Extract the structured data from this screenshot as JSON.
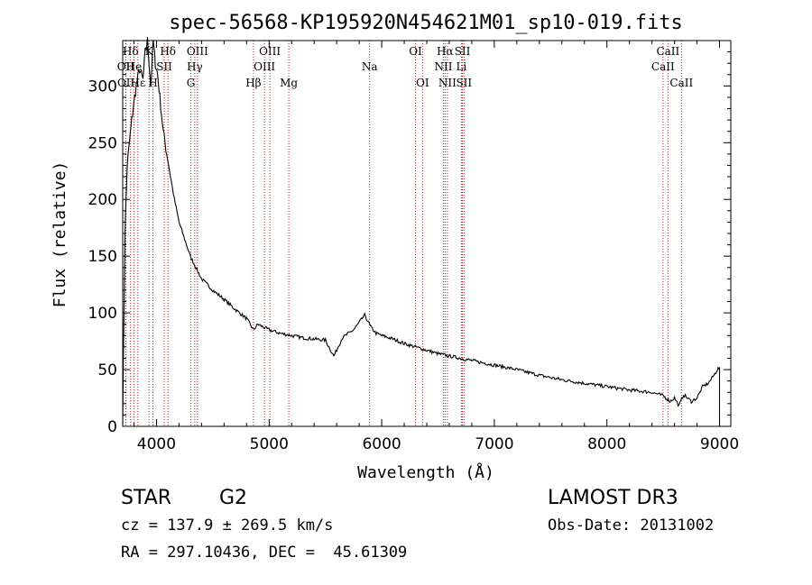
{
  "chart_data": {
    "type": "line",
    "title": "spec-56568-KP195920N454621M01_sp10-019.fits",
    "xlabel": "Wavelength (Å)",
    "ylabel": "Flux (relative)",
    "xlim": [
      3700,
      9100
    ],
    "ylim": [
      0,
      340
    ],
    "x_ticks": [
      4000,
      5000,
      6000,
      7000,
      8000,
      9000
    ],
    "x_tick_labels": [
      "4000",
      "5000",
      "6000",
      "7000",
      "8000",
      "9000"
    ],
    "y_ticks": [
      0,
      50,
      100,
      150,
      200,
      250,
      300
    ],
    "y_tick_labels": [
      "0",
      "50",
      "100",
      "150",
      "200",
      "250",
      "300"
    ],
    "series": [
      {
        "name": "flux",
        "x": [
          3700,
          3720,
          3740,
          3760,
          3780,
          3800,
          3820,
          3850,
          3880,
          3900,
          3920,
          3950,
          3970,
          3990,
          4010,
          4030,
          4060,
          4100,
          4150,
          4200,
          4250,
          4300,
          4350,
          4400,
          4450,
          4500,
          4600,
          4700,
          4800,
          4861,
          4900,
          5000,
          5100,
          5200,
          5300,
          5400,
          5500,
          5575,
          5650,
          5750,
          5850,
          5900,
          5950,
          6000,
          6100,
          6200,
          6300,
          6400,
          6500,
          6600,
          6700,
          6800,
          6900,
          7000,
          7200,
          7400,
          7600,
          7800,
          8000,
          8200,
          8400,
          8500,
          8560,
          8600,
          8640,
          8680,
          8750,
          8800,
          8850,
          8900,
          8950,
          8980,
          9000
        ],
        "values": [
          5,
          170,
          230,
          250,
          270,
          285,
          300,
          315,
          305,
          330,
          340,
          300,
          340,
          320,
          310,
          290,
          260,
          235,
          205,
          180,
          165,
          150,
          140,
          130,
          125,
          120,
          112,
          103,
          95,
          85,
          90,
          85,
          82,
          80,
          78,
          77,
          76,
          62,
          78,
          85,
          98,
          88,
          82,
          80,
          77,
          73,
          70,
          67,
          64,
          62,
          60,
          58,
          56,
          54,
          50,
          45,
          41,
          38,
          35,
          32,
          30,
          27,
          22,
          25,
          18,
          28,
          22,
          25,
          35,
          38,
          45,
          50,
          52
        ]
      }
    ],
    "line_markers": [
      {
        "label": "Hδ",
        "x": 3770,
        "row": 0
      },
      {
        "label": "OII",
        "x": 3727,
        "row": 1
      },
      {
        "label": "He",
        "x": 3800,
        "row": 1
      },
      {
        "label": "OII",
        "x": 3729,
        "row": 2
      },
      {
        "label": "Hε",
        "x": 3835,
        "row": 2
      },
      {
        "label": "K",
        "x": 3934,
        "row": 0
      },
      {
        "label": "SII",
        "x": 4069,
        "row": 1
      },
      {
        "label": "H",
        "x": 3969,
        "row": 2
      },
      {
        "label": "Hδ",
        "x": 4102,
        "row": 0
      },
      {
        "label": "OIII",
        "x": 4364,
        "row": 0
      },
      {
        "label": "Hγ",
        "x": 4340,
        "row": 1
      },
      {
        "label": "G",
        "x": 4305,
        "row": 2
      },
      {
        "label": "OIII",
        "x": 5007,
        "row": 0
      },
      {
        "label": "OIII",
        "x": 4959,
        "row": 1
      },
      {
        "label": "Hβ",
        "x": 4861,
        "row": 2
      },
      {
        "label": "Mg",
        "x": 5175,
        "row": 2
      },
      {
        "label": "Na",
        "x": 5893,
        "row": 1
      },
      {
        "label": "OI",
        "x": 6300,
        "row": 0
      },
      {
        "label": "OI",
        "x": 6363,
        "row": 2
      },
      {
        "label": "Hα",
        "x": 6563,
        "row": 0
      },
      {
        "label": "SII",
        "x": 6717,
        "row": 0
      },
      {
        "label": "NII",
        "x": 6548,
        "row": 1
      },
      {
        "label": "Li",
        "x": 6708,
        "row": 1
      },
      {
        "label": "NII",
        "x": 6583,
        "row": 2
      },
      {
        "label": "SII",
        "x": 6731,
        "row": 2
      },
      {
        "label": "CaII",
        "x": 8542,
        "row": 0
      },
      {
        "label": "CaII",
        "x": 8498,
        "row": 1
      },
      {
        "label": "CaII",
        "x": 8662,
        "row": 2
      }
    ],
    "marker_color": "#b22222"
  },
  "info": {
    "object_class": "STAR",
    "subclass": "G2",
    "survey": "LAMOST DR3",
    "cz": "cz = 137.9 ± 269.5 km/s",
    "obs_date": "Obs-Date: 20131002",
    "coords": "RA = 297.10436, DEC =  45.61309"
  }
}
